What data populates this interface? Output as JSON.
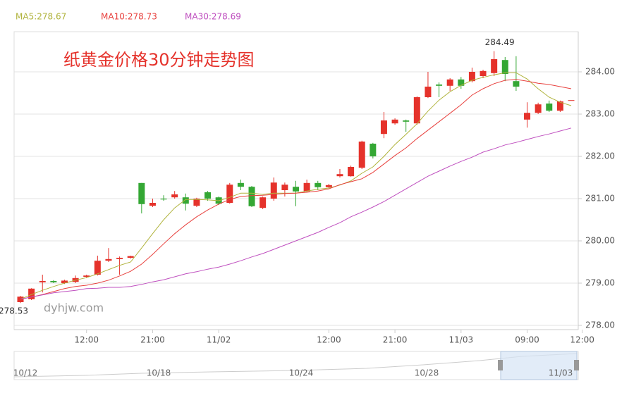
{
  "chart_data": {
    "type": "candlestick",
    "title": "纸黄金价格30分钟走势图",
    "watermark": "dyhjw.com",
    "categories": [
      null,
      null,
      null,
      null,
      null,
      null,
      "12:00",
      null,
      null,
      null,
      null,
      null,
      "21:00",
      null,
      null,
      null,
      null,
      null,
      "11/02",
      null,
      null,
      null,
      null,
      null,
      null,
      null,
      null,
      null,
      "12:00",
      null,
      null,
      null,
      null,
      null,
      "21:00",
      null,
      null,
      null,
      null,
      null,
      "11/03",
      null,
      null,
      null,
      null,
      null,
      "09:00",
      null,
      null,
      null,
      null,
      "12:00"
    ],
    "open": [
      278.55,
      278.62,
      279.02,
      279.05,
      279.0,
      279.03,
      279.15,
      279.2,
      279.53,
      279.57,
      279.6,
      281.37,
      280.83,
      281.0,
      281.03,
      281.03,
      280.83,
      281.15,
      281.03,
      280.9,
      281.37,
      281.28,
      280.78,
      281.0,
      281.2,
      281.28,
      281.17,
      281.37,
      281.27,
      281.53,
      281.53,
      281.73,
      282.3,
      282.53,
      282.78,
      282.85,
      282.78,
      283.4,
      283.7,
      283.67,
      283.82,
      283.78,
      283.9,
      283.97,
      284.28,
      283.78,
      282.87,
      283.03,
      283.25,
      283.08,
      283.33,
      null
    ],
    "high": [
      278.7,
      278.88,
      279.2,
      279.07,
      279.08,
      279.18,
      279.2,
      279.65,
      279.83,
      279.63,
      279.65,
      281.37,
      281.0,
      281.08,
      281.18,
      281.12,
      281.02,
      281.18,
      281.05,
      281.37,
      281.45,
      281.3,
      281.05,
      281.5,
      281.38,
      281.42,
      281.45,
      281.42,
      281.35,
      281.7,
      281.78,
      282.37,
      282.32,
      283.05,
      282.9,
      282.87,
      283.42,
      284.0,
      283.75,
      283.85,
      283.88,
      284.1,
      284.05,
      284.49,
      284.35,
      284.37,
      283.28,
      283.27,
      283.32,
      283.32,
      283.33,
      null
    ],
    "low": [
      278.53,
      278.6,
      278.78,
      279.0,
      278.98,
      279.0,
      279.12,
      279.18,
      279.5,
      279.2,
      279.58,
      280.65,
      280.8,
      280.95,
      281.0,
      280.72,
      280.8,
      280.95,
      280.85,
      280.88,
      281.2,
      280.8,
      280.75,
      280.95,
      281.05,
      280.82,
      281.15,
      281.2,
      281.25,
      281.5,
      281.52,
      281.7,
      281.95,
      282.43,
      282.75,
      282.58,
      282.75,
      283.38,
      283.4,
      283.55,
      283.6,
      283.75,
      283.85,
      283.9,
      283.78,
      283.55,
      282.68,
      283.0,
      283.05,
      283.05,
      283.33,
      null
    ],
    "close": [
      278.68,
      278.87,
      279.05,
      279.02,
      279.06,
      279.12,
      279.18,
      279.53,
      279.57,
      279.6,
      279.64,
      280.87,
      280.9,
      280.98,
      281.1,
      280.88,
      281.0,
      281.0,
      280.88,
      281.33,
      281.28,
      280.82,
      281.03,
      281.38,
      281.33,
      281.17,
      281.37,
      281.27,
      281.32,
      281.58,
      281.75,
      282.35,
      282.0,
      282.85,
      282.87,
      282.82,
      283.4,
      283.65,
      283.67,
      283.82,
      283.67,
      284.0,
      284.02,
      284.3,
      283.95,
      283.65,
      283.03,
      283.23,
      283.08,
      283.3,
      283.33,
      null
    ],
    "up_color": "#e5322b",
    "down_color": "#34a734",
    "annotations": [
      "284.49",
      "278.53"
    ],
    "series": [
      {
        "name": "MA5:278.67",
        "color": "#b0b33c",
        "values": [
          278.62,
          278.73,
          278.83,
          278.92,
          279.0,
          279.07,
          279.13,
          279.22,
          279.32,
          279.42,
          279.5,
          279.83,
          280.17,
          280.5,
          280.78,
          280.98,
          280.98,
          280.97,
          280.95,
          281.03,
          281.13,
          281.13,
          281.1,
          281.13,
          281.13,
          281.13,
          281.18,
          281.22,
          281.25,
          281.32,
          281.42,
          281.6,
          281.75,
          282.0,
          282.28,
          282.52,
          282.77,
          283.07,
          283.33,
          283.53,
          283.68,
          283.8,
          283.87,
          283.93,
          283.98,
          283.98,
          283.83,
          283.6,
          283.4,
          283.28,
          283.2,
          null
        ]
      },
      {
        "name": "MA10:278.73",
        "color": "#e8413e",
        "values": [
          278.62,
          278.67,
          278.73,
          278.8,
          278.87,
          278.92,
          278.95,
          279.0,
          279.07,
          279.17,
          279.28,
          279.45,
          279.68,
          279.93,
          280.17,
          280.38,
          280.57,
          280.73,
          280.87,
          280.98,
          281.05,
          281.07,
          281.08,
          281.1,
          281.12,
          281.13,
          281.15,
          281.18,
          281.23,
          281.33,
          281.4,
          281.47,
          281.62,
          281.82,
          282.02,
          282.2,
          282.42,
          282.62,
          282.82,
          283.02,
          283.22,
          283.45,
          283.6,
          283.72,
          283.8,
          283.82,
          283.78,
          283.73,
          283.7,
          283.65,
          283.6,
          null
        ]
      },
      {
        "name": "MA30:278.69",
        "color": "#bf4fbf",
        "values": [
          278.62,
          278.67,
          278.72,
          278.77,
          278.8,
          278.83,
          278.87,
          278.88,
          278.9,
          278.9,
          278.92,
          278.97,
          279.03,
          279.08,
          279.15,
          279.22,
          279.27,
          279.33,
          279.38,
          279.45,
          279.53,
          279.62,
          279.7,
          279.8,
          279.9,
          280.0,
          280.1,
          280.2,
          280.32,
          280.43,
          280.57,
          280.68,
          280.8,
          280.93,
          281.08,
          281.23,
          281.38,
          281.53,
          281.65,
          281.77,
          281.88,
          281.98,
          282.1,
          282.18,
          282.27,
          282.33,
          282.4,
          282.47,
          282.53,
          282.6,
          282.67,
          null
        ]
      }
    ],
    "ylim": [
      277.9,
      284.95
    ],
    "yticks": [
      {
        "value": 278,
        "label": "278.00"
      },
      {
        "value": 279,
        "label": "279.00"
      },
      {
        "value": 280,
        "label": "280.00"
      },
      {
        "value": 281,
        "label": "281.00"
      },
      {
        "value": 282,
        "label": "282.00"
      },
      {
        "value": 283,
        "label": "283.00"
      },
      {
        "value": 284,
        "label": "284.00"
      }
    ],
    "grid": true,
    "navigator": {
      "labels": [
        "10/12",
        "10/18",
        "10/24",
        "10/28",
        "11/03"
      ]
    }
  }
}
